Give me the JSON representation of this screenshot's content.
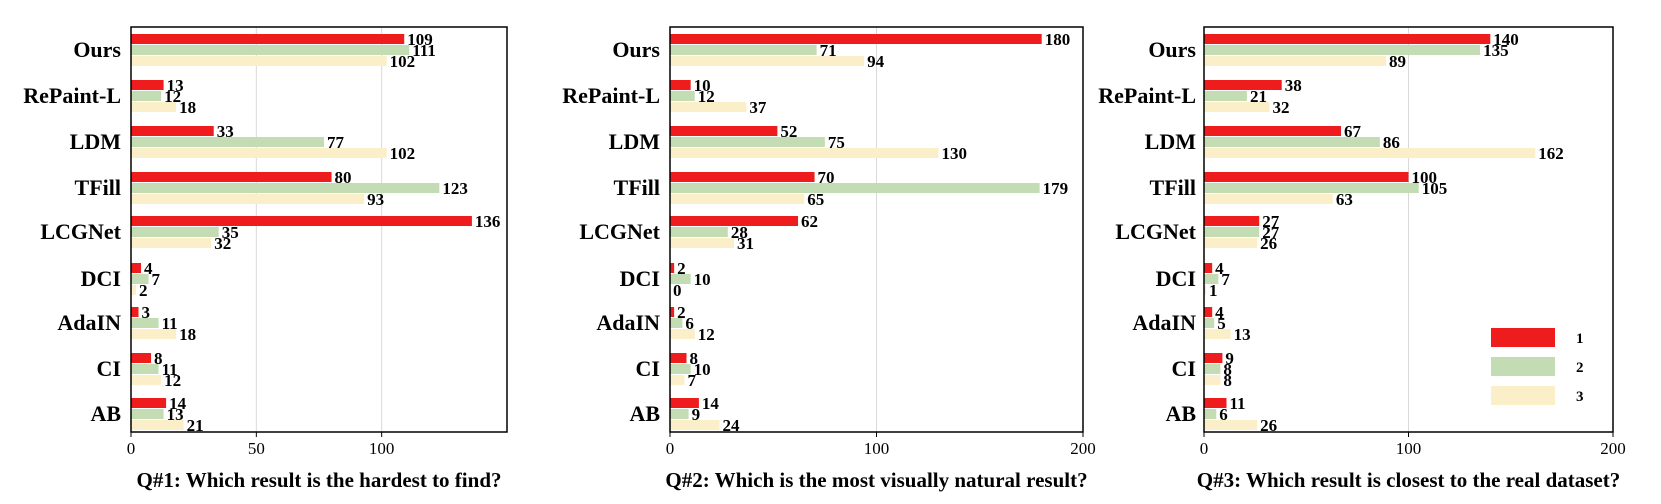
{
  "colors": {
    "s1": "#ee1c1c",
    "s2": "#c4dcb3",
    "s3": "#fbefc9",
    "grid": "#d9d9d9",
    "axis": "#000000"
  },
  "chart_data": [
    {
      "type": "bar",
      "orientation": "horizontal",
      "title": "Q#1: Which result is the hardest to find?",
      "categories": [
        "Ours",
        "RePaint-L",
        "LDM",
        "TFill",
        "LCGNet",
        "DCI",
        "AdaIN",
        "CI",
        "AB"
      ],
      "series": [
        {
          "name": "1",
          "values": [
            109,
            13,
            33,
            80,
            136,
            4,
            3,
            8,
            14
          ]
        },
        {
          "name": "2",
          "values": [
            111,
            12,
            77,
            123,
            35,
            7,
            11,
            11,
            13
          ]
        },
        {
          "name": "3",
          "values": [
            102,
            18,
            102,
            93,
            32,
            2,
            18,
            12,
            21
          ]
        }
      ],
      "xlim": [
        0,
        150
      ],
      "xticks": [
        "0",
        "50",
        "100"
      ],
      "xtick_values": [
        0,
        50,
        100
      ],
      "grid": true
    },
    {
      "type": "bar",
      "orientation": "horizontal",
      "title": "Q#2: Which is the most visually natural result?",
      "categories": [
        "Ours",
        "RePaint-L",
        "LDM",
        "TFill",
        "LCGNet",
        "DCI",
        "AdaIN",
        "CI",
        "AB"
      ],
      "series": [
        {
          "name": "1",
          "values": [
            180,
            10,
            52,
            70,
            62,
            2,
            2,
            8,
            14
          ]
        },
        {
          "name": "2",
          "values": [
            71,
            12,
            75,
            179,
            28,
            10,
            6,
            10,
            9
          ]
        },
        {
          "name": "3",
          "values": [
            94,
            37,
            130,
            65,
            31,
            0,
            12,
            7,
            24
          ]
        }
      ],
      "xlim": [
        0,
        200
      ],
      "xticks": [
        "0",
        "100",
        "200"
      ],
      "xtick_values": [
        0,
        100,
        200
      ],
      "grid": true
    },
    {
      "type": "bar",
      "orientation": "horizontal",
      "title": "Q#3: Which result is closest to the real dataset?",
      "categories": [
        "Ours",
        "RePaint-L",
        "LDM",
        "TFill",
        "LCGNet",
        "DCI",
        "AdaIN",
        "CI",
        "AB"
      ],
      "series": [
        {
          "name": "1",
          "values": [
            140,
            38,
            67,
            100,
            27,
            4,
            4,
            9,
            11
          ]
        },
        {
          "name": "2",
          "values": [
            135,
            21,
            86,
            105,
            27,
            7,
            5,
            8,
            6
          ]
        },
        {
          "name": "3",
          "values": [
            89,
            32,
            162,
            63,
            26,
            1,
            13,
            8,
            26
          ]
        }
      ],
      "xlim": [
        0,
        200
      ],
      "xticks": [
        "0",
        "100",
        "200"
      ],
      "xtick_values": [
        0,
        100,
        200
      ],
      "grid": true,
      "legend": {
        "position": "bottom-right",
        "entries": [
          "1",
          "2",
          "3"
        ]
      }
    }
  ]
}
